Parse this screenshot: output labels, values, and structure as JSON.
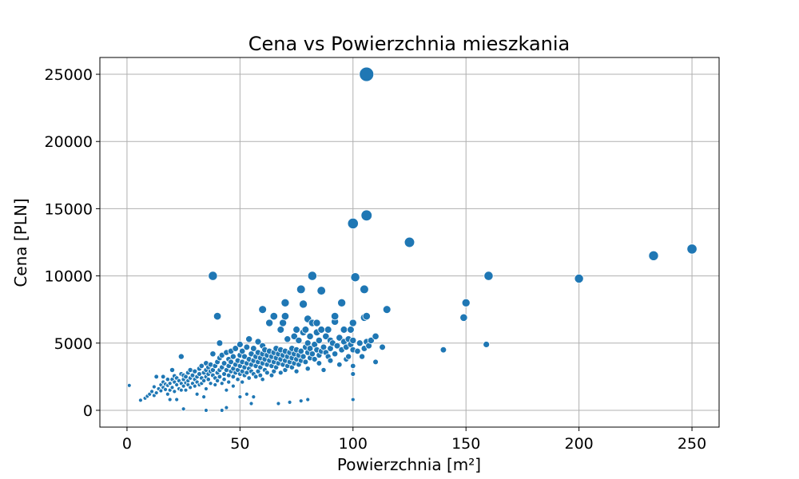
{
  "chart_data": {
    "type": "scatter",
    "title": "Cena vs Powierzchnia mieszkania",
    "xlabel": "Powierzchnia [m²]",
    "ylabel": "Cena [PLN]",
    "xlim": [
      -12,
      262
    ],
    "ylim": [
      -1250,
      26250
    ],
    "xticks": [
      0,
      50,
      100,
      150,
      200,
      250
    ],
    "yticks": [
      0,
      5000,
      10000,
      15000,
      20000,
      25000
    ],
    "grid": true,
    "marker_color": "#1f77b4",
    "marker_size_encodes": "Cena [PLN]",
    "points": [
      [
        1,
        1850
      ],
      [
        6,
        750
      ],
      [
        8,
        900
      ],
      [
        9,
        1050
      ],
      [
        10,
        1200
      ],
      [
        11,
        1400
      ],
      [
        12,
        1750
      ],
      [
        12,
        1100
      ],
      [
        13,
        1300
      ],
      [
        13,
        2500
      ],
      [
        14,
        1600
      ],
      [
        15,
        1450
      ],
      [
        15,
        1900
      ],
      [
        16,
        2100
      ],
      [
        16,
        1700
      ],
      [
        16,
        2500
      ],
      [
        17,
        1550
      ],
      [
        17,
        1950
      ],
      [
        18,
        1850
      ],
      [
        18,
        1200
      ],
      [
        18,
        2300
      ],
      [
        19,
        800
      ],
      [
        19,
        1500
      ],
      [
        19,
        2000
      ],
      [
        20,
        1700
      ],
      [
        20,
        2300
      ],
      [
        20,
        3000
      ],
      [
        21,
        1400
      ],
      [
        21,
        2100
      ],
      [
        21,
        2550
      ],
      [
        22,
        1900
      ],
      [
        22,
        800
      ],
      [
        22,
        2400
      ],
      [
        23,
        1600
      ],
      [
        23,
        2200
      ],
      [
        24,
        2000
      ],
      [
        24,
        2700
      ],
      [
        24,
        1500
      ],
      [
        24,
        4000
      ],
      [
        25,
        100
      ],
      [
        25,
        1800
      ],
      [
        25,
        2300
      ],
      [
        25,
        2600
      ],
      [
        26,
        1500
      ],
      [
        26,
        2500
      ],
      [
        26,
        2050
      ],
      [
        27,
        1900
      ],
      [
        27,
        2800
      ],
      [
        27,
        2200
      ],
      [
        28,
        2400
      ],
      [
        28,
        1700
      ],
      [
        28,
        3000
      ],
      [
        29,
        2000
      ],
      [
        29,
        2600
      ],
      [
        30,
        1800
      ],
      [
        30,
        2300
      ],
      [
        30,
        2900
      ],
      [
        31,
        1200
      ],
      [
        31,
        2500
      ],
      [
        31,
        2100
      ],
      [
        32,
        2700
      ],
      [
        32,
        3100
      ],
      [
        32,
        1900
      ],
      [
        33,
        2400
      ],
      [
        33,
        2000
      ],
      [
        33,
        3300
      ],
      [
        34,
        2800
      ],
      [
        34,
        2200
      ],
      [
        34,
        1000
      ],
      [
        35,
        2500
      ],
      [
        35,
        3000
      ],
      [
        35,
        3500
      ],
      [
        35,
        1600
      ],
      [
        35,
        0
      ],
      [
        36,
        2700
      ],
      [
        36,
        2300
      ],
      [
        36,
        3200
      ],
      [
        37,
        2000
      ],
      [
        37,
        2900
      ],
      [
        37,
        3400
      ],
      [
        38,
        2600
      ],
      [
        38,
        3000
      ],
      [
        38,
        4200
      ],
      [
        38,
        10000
      ],
      [
        39,
        2400
      ],
      [
        39,
        3300
      ],
      [
        39,
        1900
      ],
      [
        40,
        2800
      ],
      [
        40,
        3600
      ],
      [
        40,
        7000
      ],
      [
        40,
        2200
      ],
      [
        41,
        3000
      ],
      [
        41,
        3900
      ],
      [
        41,
        2500
      ],
      [
        41,
        5000
      ],
      [
        42,
        3200
      ],
      [
        42,
        2000
      ],
      [
        42,
        4100
      ],
      [
        42,
        0
      ],
      [
        43,
        2700
      ],
      [
        43,
        3500
      ],
      [
        43,
        2300
      ],
      [
        44,
        3000
      ],
      [
        44,
        4300
      ],
      [
        44,
        1500
      ],
      [
        44,
        200
      ],
      [
        45,
        2600
      ],
      [
        45,
        3300
      ],
      [
        45,
        3800
      ],
      [
        45,
        2100
      ],
      [
        46,
        2900
      ],
      [
        46,
        3600
      ],
      [
        46,
        4400
      ],
      [
        47,
        2500
      ],
      [
        47,
        3100
      ],
      [
        47,
        4000
      ],
      [
        47,
        1800
      ],
      [
        48,
        3400
      ],
      [
        48,
        2800
      ],
      [
        48,
        4600
      ],
      [
        49,
        3000
      ],
      [
        49,
        3700
      ],
      [
        49,
        2300
      ],
      [
        50,
        2700
      ],
      [
        50,
        3300
      ],
      [
        50,
        4100
      ],
      [
        50,
        4900
      ],
      [
        50,
        1000
      ],
      [
        51,
        2900
      ],
      [
        51,
        3600
      ],
      [
        51,
        4400
      ],
      [
        51,
        2100
      ],
      [
        52,
        3200
      ],
      [
        52,
        2600
      ],
      [
        52,
        4000
      ],
      [
        53,
        3500
      ],
      [
        53,
        2800
      ],
      [
        53,
        4700
      ],
      [
        53,
        1200
      ],
      [
        54,
        3100
      ],
      [
        54,
        3800
      ],
      [
        54,
        2400
      ],
      [
        54,
        5300
      ],
      [
        55,
        3400
      ],
      [
        55,
        2900
      ],
      [
        55,
        4200
      ],
      [
        55,
        500
      ],
      [
        56,
        3700
      ],
      [
        56,
        2700
      ],
      [
        56,
        4600
      ],
      [
        56,
        1000
      ],
      [
        57,
        3300
      ],
      [
        57,
        4000
      ],
      [
        57,
        2500
      ],
      [
        58,
        3600
      ],
      [
        58,
        4300
      ],
      [
        58,
        2900
      ],
      [
        58,
        5100
      ],
      [
        59,
        3200
      ],
      [
        59,
        3900
      ],
      [
        59,
        2600
      ],
      [
        60,
        3500
      ],
      [
        60,
        4200
      ],
      [
        60,
        7500
      ],
      [
        60,
        4800
      ],
      [
        60,
        2300
      ],
      [
        61,
        3800
      ],
      [
        61,
        3000
      ],
      [
        61,
        4500
      ],
      [
        62,
        3400
      ],
      [
        62,
        4100
      ],
      [
        62,
        2800
      ],
      [
        63,
        3700
      ],
      [
        63,
        6500
      ],
      [
        63,
        4400
      ],
      [
        64,
        3300
      ],
      [
        64,
        4000
      ],
      [
        64,
        2600
      ],
      [
        65,
        3600
      ],
      [
        65,
        4300
      ],
      [
        65,
        7000
      ],
      [
        65,
        2900
      ],
      [
        66,
        3900
      ],
      [
        66,
        3200
      ],
      [
        66,
        4600
      ],
      [
        67,
        3500
      ],
      [
        67,
        4200
      ],
      [
        67,
        500
      ],
      [
        68,
        3800
      ],
      [
        68,
        6000
      ],
      [
        68,
        4500
      ],
      [
        68,
        2800
      ],
      [
        69,
        3400
      ],
      [
        69,
        4100
      ],
      [
        69,
        6500
      ],
      [
        70,
        3700
      ],
      [
        70,
        4400
      ],
      [
        70,
        8000
      ],
      [
        70,
        7000
      ],
      [
        70,
        3000
      ],
      [
        71,
        4000
      ],
      [
        71,
        3300
      ],
      [
        71,
        5300
      ],
      [
        72,
        3600
      ],
      [
        72,
        4300
      ],
      [
        72,
        600
      ],
      [
        73,
        3900
      ],
      [
        73,
        4600
      ],
      [
        73,
        3200
      ],
      [
        74,
        4200
      ],
      [
        74,
        5500
      ],
      [
        74,
        3500
      ],
      [
        75,
        3800
      ],
      [
        75,
        4500
      ],
      [
        75,
        6000
      ],
      [
        75,
        2900
      ],
      [
        76,
        4100
      ],
      [
        76,
        5200
      ],
      [
        76,
        3400
      ],
      [
        77,
        3700
      ],
      [
        77,
        4400
      ],
      [
        77,
        9000
      ],
      [
        77,
        700
      ],
      [
        78,
        4000
      ],
      [
        78,
        5800
      ],
      [
        78,
        7900
      ],
      [
        79,
        3600
      ],
      [
        79,
        4700
      ],
      [
        79,
        6000
      ],
      [
        80,
        4300
      ],
      [
        80,
        5000
      ],
      [
        80,
        3100
      ],
      [
        80,
        6800
      ],
      [
        80,
        800
      ],
      [
        81,
        3900
      ],
      [
        81,
        4600
      ],
      [
        81,
        5500
      ],
      [
        82,
        4200
      ],
      [
        82,
        6500
      ],
      [
        82,
        10000
      ],
      [
        83,
        3800
      ],
      [
        83,
        4900
      ],
      [
        84,
        4500
      ],
      [
        84,
        5800
      ],
      [
        84,
        6500
      ],
      [
        85,
        4100
      ],
      [
        85,
        5200
      ],
      [
        85,
        3500
      ],
      [
        86,
        4400
      ],
      [
        86,
        8900
      ],
      [
        86,
        6000
      ],
      [
        87,
        3000
      ],
      [
        87,
        4700
      ],
      [
        88,
        4300
      ],
      [
        88,
        5500
      ],
      [
        89,
        4000
      ],
      [
        89,
        6000
      ],
      [
        90,
        4600
      ],
      [
        90,
        5200
      ],
      [
        90,
        3700
      ],
      [
        91,
        5000
      ],
      [
        92,
        4200
      ],
      [
        92,
        6600
      ],
      [
        92,
        7000
      ],
      [
        93,
        4800
      ],
      [
        94,
        5400
      ],
      [
        94,
        3400
      ],
      [
        95,
        8000
      ],
      [
        95,
        4500
      ],
      [
        96,
        5100
      ],
      [
        96,
        6000
      ],
      [
        97,
        3800
      ],
      [
        97,
        4700
      ],
      [
        98,
        5300
      ],
      [
        98,
        4000
      ],
      [
        99,
        4900
      ],
      [
        99,
        6000
      ],
      [
        100,
        3300
      ],
      [
        100,
        4500
      ],
      [
        100,
        5200
      ],
      [
        100,
        6500
      ],
      [
        100,
        2700
      ],
      [
        100,
        800
      ],
      [
        100,
        13900
      ],
      [
        101,
        9900
      ],
      [
        102,
        4400
      ],
      [
        103,
        5000
      ],
      [
        104,
        4000
      ],
      [
        105,
        9000
      ],
      [
        105,
        6900
      ],
      [
        105,
        4600
      ],
      [
        106,
        25000
      ],
      [
        106,
        14500
      ],
      [
        106,
        7000
      ],
      [
        106,
        5100
      ],
      [
        107,
        4800
      ],
      [
        108,
        5200
      ],
      [
        110,
        5500
      ],
      [
        110,
        3600
      ],
      [
        113,
        4700
      ],
      [
        115,
        7500
      ],
      [
        125,
        12500
      ],
      [
        140,
        4500
      ],
      [
        149,
        6900
      ],
      [
        150,
        8000
      ],
      [
        159,
        4900
      ],
      [
        160,
        10000
      ],
      [
        200,
        9800
      ],
      [
        233,
        11500
      ],
      [
        250,
        12000
      ]
    ]
  }
}
